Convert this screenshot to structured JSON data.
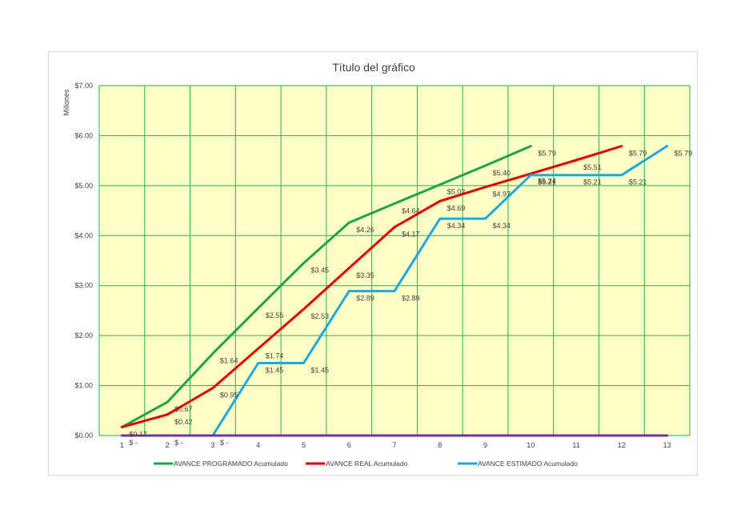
{
  "chart_data": {
    "type": "line",
    "title": "Título del gráfico",
    "ylabel": "Millones",
    "xlabel": "",
    "x": [
      1,
      2,
      3,
      4,
      5,
      6,
      7,
      8,
      9,
      10,
      11,
      12,
      13
    ],
    "x_tick_labels": [
      "1",
      "2",
      "3",
      "4",
      "5",
      "6",
      "7",
      "8",
      "9",
      "10",
      "11",
      "12",
      "13"
    ],
    "ylim": [
      0,
      7
    ],
    "y_tick_labels": [
      "$0.00",
      "$1.00",
      "$2.00",
      "$3.00",
      "$4.00",
      "$5.00",
      "$6.00",
      "$7.00"
    ],
    "grid": true,
    "plot_background": "#ffffc6",
    "grid_color": "#22b14c",
    "legend_position": "bottom",
    "series": [
      {
        "name": "AVANCE PROGRAMADO Acumulado",
        "color": "#1ea446",
        "x": [
          1,
          2,
          3,
          4,
          5,
          6,
          7,
          8,
          9,
          10
        ],
        "values": [
          0.17,
          0.67,
          1.64,
          2.55,
          3.45,
          4.26,
          4.64,
          5.02,
          5.4,
          5.79
        ],
        "labels": [
          "$0.17",
          "$0.67",
          "$1.64",
          "$2.55",
          "$3.45",
          "$4.26",
          "$4.64",
          "$5.02",
          "$5.40",
          "$5.79"
        ]
      },
      {
        "name": "AVANCE REAL Acumulado",
        "color": "#e00000",
        "x": [
          1,
          2,
          3,
          4,
          5,
          6,
          7,
          8,
          9,
          10,
          11,
          12
        ],
        "values": [
          0.17,
          0.42,
          0.95,
          1.74,
          2.53,
          3.35,
          4.17,
          4.69,
          4.97,
          5.24,
          5.51,
          5.79
        ],
        "labels": [
          "",
          "$0.42",
          "$0.95",
          "$1.74",
          "$2.53",
          "$3.35",
          "$4.17",
          "$4.69",
          "$4.97",
          "$5.24",
          "$5.51",
          "$5.79"
        ]
      },
      {
        "name": "AVANCE ESTIMADO Acumulado",
        "color": "#1ea8e0",
        "x": [
          3,
          4,
          5,
          6,
          7,
          8,
          9,
          10,
          11,
          12,
          13
        ],
        "values": [
          0,
          1.45,
          1.45,
          2.89,
          2.89,
          4.34,
          4.34,
          5.21,
          5.21,
          5.21,
          5.79
        ],
        "labels": [
          "",
          "$1.45",
          "$1.45",
          "$2.89",
          "$2.89",
          "$4.34",
          "$4.34",
          "$5.21",
          "$5.21",
          "$5.21",
          "$5.79"
        ]
      },
      {
        "name": "",
        "color": "#7030a0",
        "x": [
          1,
          2,
          3,
          4,
          5,
          6,
          7,
          8,
          9,
          10,
          11,
          12,
          13
        ],
        "values": [
          0,
          0,
          0,
          0,
          0,
          0,
          0,
          0,
          0,
          0,
          0,
          0,
          0
        ],
        "labels": [
          "$ -",
          "$ -",
          "$ -",
          "",
          "",
          "",
          "",
          "",
          "",
          "",
          "",
          "",
          ""
        ]
      }
    ]
  }
}
